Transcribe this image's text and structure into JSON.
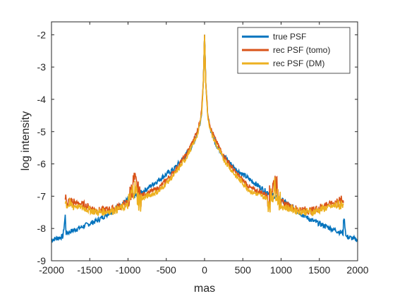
{
  "chart_data": {
    "type": "line",
    "title": "",
    "xlabel": "mas",
    "ylabel": "log intensity",
    "xlim": [
      -2000,
      2000
    ],
    "ylim": [
      -9,
      -1.6
    ],
    "xticks": [
      "-2000",
      "-1500",
      "-1000",
      "-500",
      "0",
      "500",
      "1000",
      "1500",
      "2000"
    ],
    "yticks": [
      "-2",
      "-3",
      "-4",
      "-5",
      "-6",
      "-7",
      "-8",
      "-9"
    ],
    "grid": false,
    "legend_position": "top-right",
    "series": [
      {
        "name": "true PSF",
        "color": "#0072BD",
        "x": [
          -2000,
          -1850,
          -1820,
          -1810,
          -1600,
          -1400,
          -1200,
          -1000,
          -800,
          -600,
          -400,
          -250,
          -150,
          -80,
          -40,
          -15,
          0,
          15,
          40,
          80,
          150,
          250,
          400,
          600,
          800,
          1000,
          1200,
          1400,
          1600,
          1810,
          1820,
          1850,
          2000
        ],
        "y": [
          -8.35,
          -8.25,
          -7.6,
          -8.15,
          -7.95,
          -7.75,
          -7.45,
          -7.1,
          -6.85,
          -6.5,
          -6.15,
          -5.75,
          -5.4,
          -4.95,
          -4.5,
          -3.4,
          -2.0,
          -3.4,
          -4.5,
          -4.95,
          -5.4,
          -5.75,
          -6.15,
          -6.5,
          -6.85,
          -7.1,
          -7.45,
          -7.75,
          -7.95,
          -8.15,
          -7.6,
          -8.25,
          -8.35
        ]
      },
      {
        "name": "rec PSF (tomo)",
        "color": "#D95319",
        "x": [
          -1820,
          -1800,
          -1600,
          -1400,
          -1200,
          -1000,
          -920,
          -850,
          -800,
          -600,
          -400,
          -250,
          -150,
          -80,
          -40,
          -15,
          0,
          15,
          40,
          80,
          150,
          250,
          400,
          600,
          800,
          850,
          920,
          1000,
          1200,
          1400,
          1600,
          1800,
          1820
        ],
        "y": [
          -7.05,
          -7.15,
          -7.25,
          -7.45,
          -7.4,
          -7.2,
          -6.5,
          -7.0,
          -6.95,
          -6.75,
          -6.25,
          -5.75,
          -5.3,
          -4.9,
          -4.4,
          -3.4,
          -2.0,
          -3.4,
          -4.4,
          -4.9,
          -5.3,
          -5.75,
          -6.25,
          -6.75,
          -6.95,
          -7.0,
          -6.5,
          -7.2,
          -7.4,
          -7.45,
          -7.25,
          -7.15,
          -7.05
        ]
      },
      {
        "name": "rec PSF (DM)",
        "color": "#EDB120",
        "x": [
          -1820,
          -1800,
          -1600,
          -1400,
          -1200,
          -1000,
          -920,
          -850,
          -800,
          -600,
          -400,
          -250,
          -150,
          -80,
          -40,
          -15,
          0,
          15,
          40,
          80,
          150,
          250,
          400,
          600,
          800,
          850,
          920,
          1000,
          1200,
          1400,
          1600,
          1800,
          1820
        ],
        "y": [
          -7.15,
          -7.25,
          -7.35,
          -7.5,
          -7.45,
          -7.3,
          -6.7,
          -7.2,
          -7.05,
          -6.85,
          -6.35,
          -5.85,
          -5.4,
          -5.0,
          -4.5,
          -3.5,
          -2.0,
          -3.5,
          -4.5,
          -5.0,
          -5.4,
          -5.85,
          -6.35,
          -6.85,
          -7.05,
          -7.2,
          -6.7,
          -7.3,
          -7.45,
          -7.5,
          -7.35,
          -7.25,
          -7.15
        ]
      }
    ]
  }
}
